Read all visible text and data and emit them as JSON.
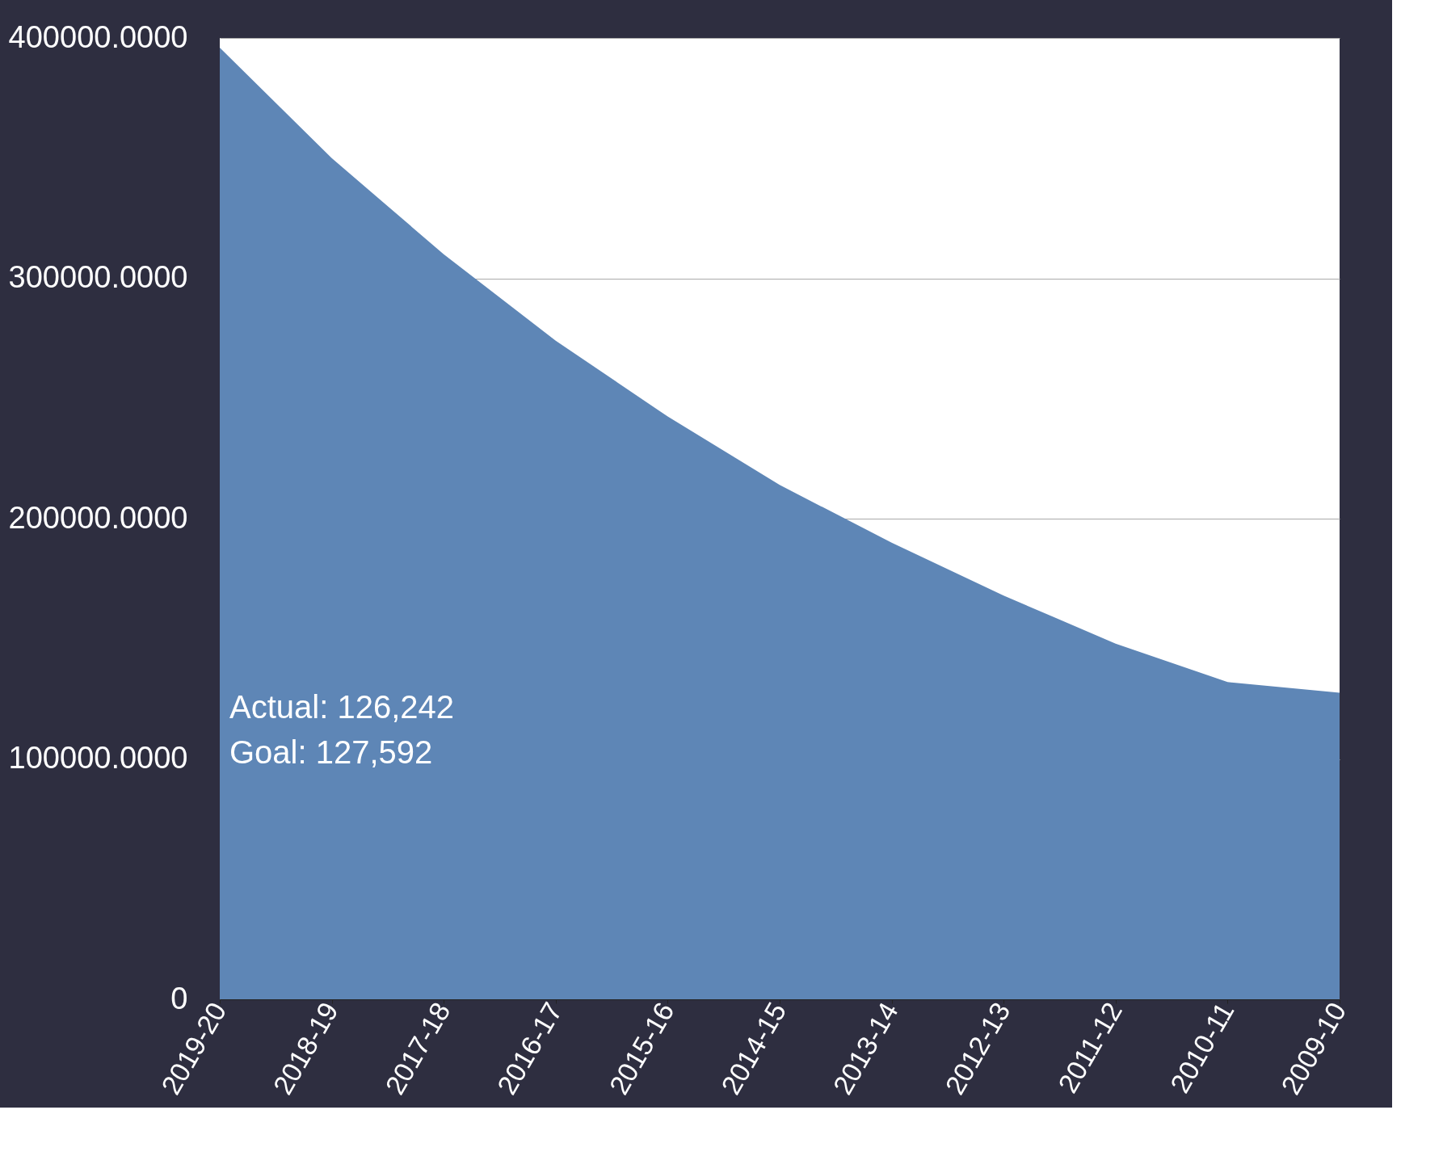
{
  "chart_data": {
    "type": "area",
    "categories": [
      "2019-20",
      "2018-19",
      "2017-18",
      "2016-17",
      "2015-16",
      "2014-15",
      "2013-14",
      "2012-13",
      "2011-12",
      "2010-11",
      "2009-10"
    ],
    "series": [
      {
        "color": "#5e86b6",
        "values": [
          396000,
          350000,
          310000,
          274000,
          242500,
          214000,
          190000,
          168000,
          148000,
          132000,
          127600
        ]
      }
    ],
    "ylim": [
      0,
      400000
    ],
    "yticks": [
      {
        "value": 0,
        "label": "0"
      },
      {
        "value": 100000,
        "label": "100000.0000"
      },
      {
        "value": 200000,
        "label": "200000.0000"
      },
      {
        "value": 300000,
        "label": "300000.0000"
      },
      {
        "value": 400000,
        "label": "400000.0000"
      }
    ],
    "grid": "y",
    "annotations": [
      "Actual: 126,242",
      "Goal:   127,592"
    ]
  }
}
